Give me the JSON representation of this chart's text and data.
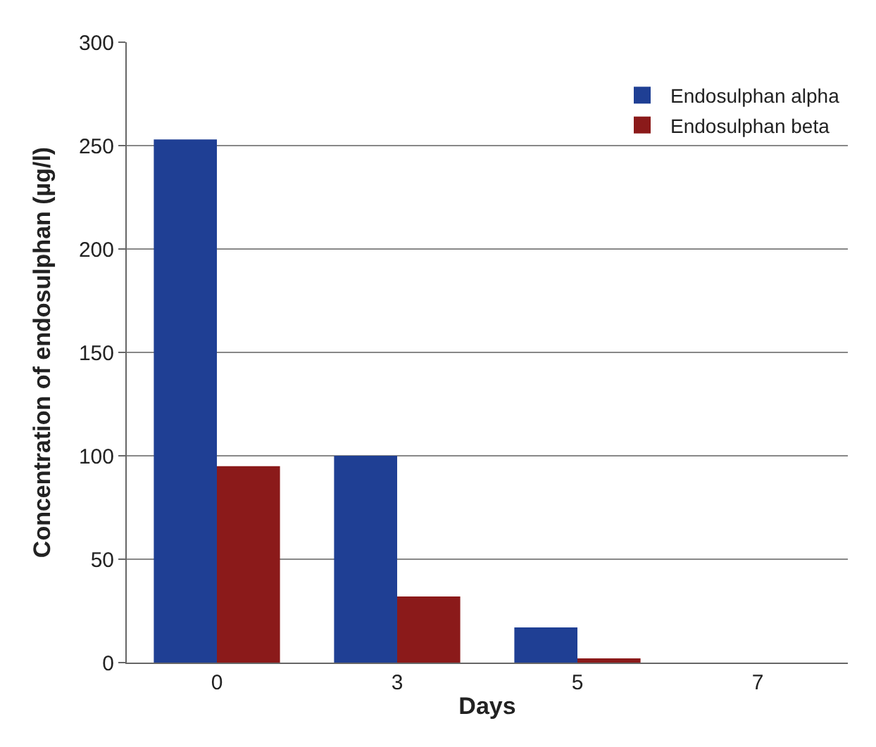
{
  "chart_data": {
    "type": "bar",
    "xlabel": "Days",
    "ylabel": "Concentration of endosulphan (µg/l)",
    "categories": [
      "0",
      "3",
      "5",
      "7"
    ],
    "series": [
      {
        "name": "Endosulphan alpha",
        "color": "#1f3f94",
        "values": [
          253,
          100,
          17,
          0
        ]
      },
      {
        "name": "Endosulphan beta",
        "color": "#8b1a1a",
        "values": [
          95,
          32,
          2,
          0
        ]
      }
    ],
    "ylim": [
      0,
      300
    ],
    "yticks": [
      0,
      50,
      100,
      150,
      200,
      250,
      300
    ],
    "grid": "y",
    "legend": "top right"
  }
}
